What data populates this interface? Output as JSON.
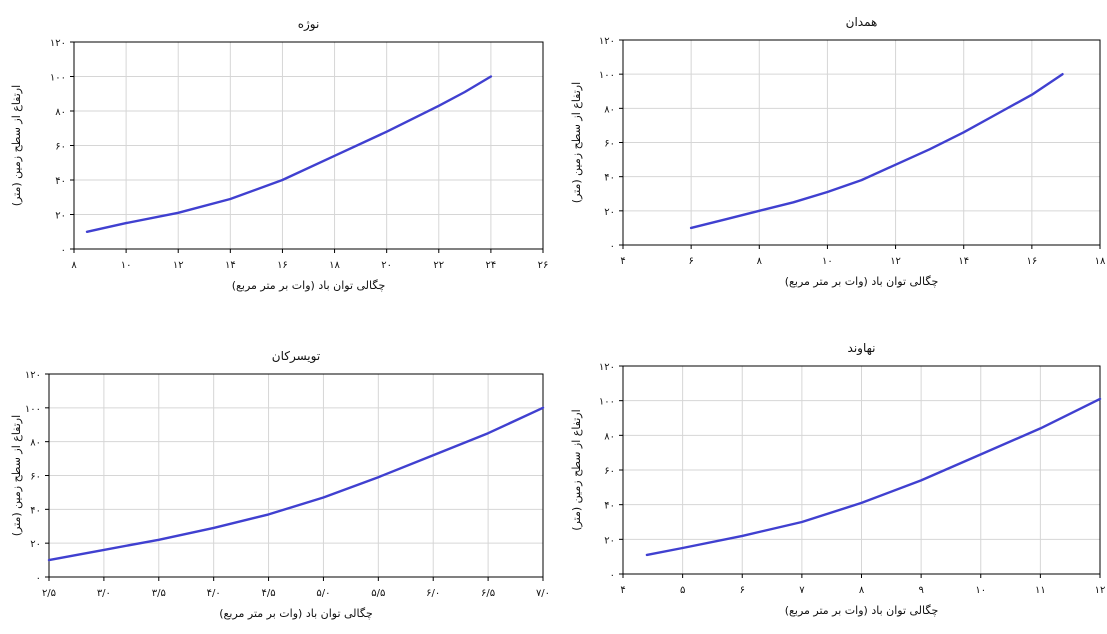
{
  "chart_data": [
    {
      "type": "line",
      "title": "نوژه",
      "xlabel": "چگالی توان باد (وات بر متر مربع)",
      "ylabel": "ارتفاع از سطح زمین (متر)",
      "xlim": [
        8,
        26
      ],
      "ylim": [
        0,
        120
      ],
      "x_ticks": [
        8,
        10,
        12,
        14,
        16,
        18,
        20,
        22,
        24,
        26
      ],
      "x_tick_labels": [
        "۸",
        "۱۰",
        "۱۲",
        "۱۴",
        "۱۶",
        "۱۸",
        "۲۰",
        "۲۲",
        "۲۴",
        "۲۶"
      ],
      "y_ticks": [
        0,
        20,
        40,
        60,
        80,
        100,
        120
      ],
      "y_tick_labels": [
        "۰",
        "۲۰",
        "۴۰",
        "۶۰",
        "۸۰",
        "۱۰۰",
        "۱۲۰"
      ],
      "grid": true,
      "color": "#4040d0",
      "series": [
        {
          "x": [
            8.5,
            10,
            12,
            14,
            16,
            18,
            20,
            22,
            23,
            24
          ],
          "y": [
            10,
            15,
            21,
            29,
            40,
            54,
            68,
            83,
            91,
            100
          ]
        }
      ]
    },
    {
      "type": "line",
      "title": "همدان",
      "xlabel": "چگالی توان باد (وات بر متر مربع)",
      "ylabel": "ارتفاع از سطح زمین (متر)",
      "xlim": [
        4,
        18
      ],
      "ylim": [
        0,
        120
      ],
      "x_ticks": [
        4,
        6,
        8,
        10,
        12,
        14,
        16,
        18
      ],
      "x_tick_labels": [
        "۴",
        "۶",
        "۸",
        "۱۰",
        "۱۲",
        "۱۴",
        "۱۶",
        "۱۸"
      ],
      "y_ticks": [
        0,
        20,
        40,
        60,
        80,
        100,
        120
      ],
      "y_tick_labels": [
        "۰",
        "۲۰",
        "۴۰",
        "۶۰",
        "۸۰",
        "۱۰۰",
        "۱۲۰"
      ],
      "grid": true,
      "color": "#4040d0",
      "series": [
        {
          "x": [
            6,
            7,
            8,
            9,
            10,
            11,
            12,
            13,
            14,
            15,
            16,
            16.9
          ],
          "y": [
            10,
            15,
            20,
            25,
            31,
            38,
            47,
            56,
            66,
            77,
            88,
            100
          ]
        }
      ]
    },
    {
      "type": "line",
      "title": "تویسرکان",
      "xlabel": "چگالی توان باد (وات بر متر مربع)",
      "ylabel": "ارتفاع از سطح زمین (متر)",
      "xlim": [
        2.5,
        7.0
      ],
      "ylim": [
        0,
        120
      ],
      "x_ticks": [
        2.5,
        3.0,
        3.5,
        4.0,
        4.5,
        5.0,
        5.5,
        6.0,
        6.5,
        7.0
      ],
      "x_tick_labels": [
        "۲/۵",
        "۳/۰",
        "۳/۵",
        "۴/۰",
        "۴/۵",
        "۵/۰",
        "۵/۵",
        "۶/۰",
        "۶/۵",
        "۷/۰"
      ],
      "y_ticks": [
        0,
        20,
        40,
        60,
        80,
        100,
        120
      ],
      "y_tick_labels": [
        "۰",
        "۲۰",
        "۴۰",
        "۶۰",
        "۸۰",
        "۱۰۰",
        "۱۲۰"
      ],
      "grid": true,
      "color": "#4040d0",
      "series": [
        {
          "x": [
            2.5,
            3.0,
            3.5,
            4.0,
            4.5,
            5.0,
            5.5,
            6.0,
            6.5,
            7.0
          ],
          "y": [
            10,
            16,
            22,
            29,
            37,
            47,
            59,
            72,
            85,
            100
          ]
        }
      ]
    },
    {
      "type": "line",
      "title": "نهاوند",
      "xlabel": "چگالی توان باد (وات بر متر مربع)",
      "ylabel": "ارتفاع از سطح زمین (متر)",
      "xlim": [
        4,
        12
      ],
      "ylim": [
        0,
        120
      ],
      "x_ticks": [
        4,
        5,
        6,
        7,
        8,
        9,
        10,
        11,
        12
      ],
      "x_tick_labels": [
        "۴",
        "۵",
        "۶",
        "۷",
        "۸",
        "۹",
        "۱۰",
        "۱۱",
        "۱۲"
      ],
      "y_ticks": [
        0,
        20,
        40,
        60,
        80,
        100,
        120
      ],
      "y_tick_labels": [
        "۰",
        "۲۰",
        "۴۰",
        "۶۰",
        "۸۰",
        "۱۰۰",
        "۱۲۰"
      ],
      "grid": true,
      "color": "#4040d0",
      "series": [
        {
          "x": [
            4.4,
            5,
            6,
            7,
            8,
            9,
            10,
            11,
            12
          ],
          "y": [
            11,
            15,
            22,
            30,
            41,
            54,
            69,
            84,
            101
          ]
        }
      ]
    }
  ]
}
